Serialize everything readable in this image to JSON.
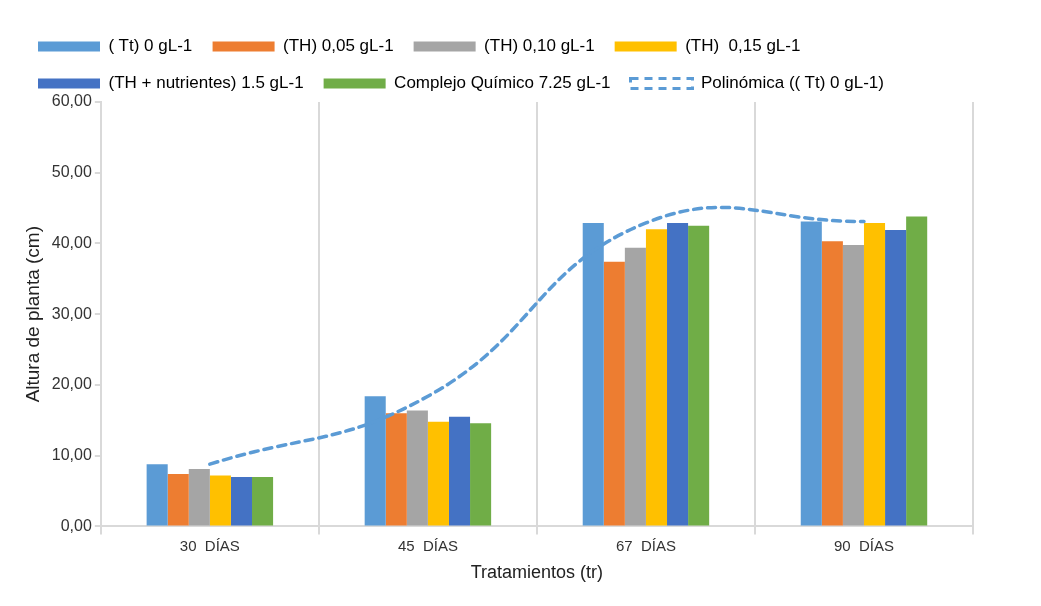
{
  "chart_data": {
    "type": "bar",
    "xlabel": "Tratamientos (tr)",
    "ylabel": "Altura de planta (cm)",
    "categories": [
      "30  DÍAS",
      "45  DÍAS",
      "67  DÍAS",
      "90  DÍAS"
    ],
    "series": [
      {
        "name": "( Tt) 0 gL-1",
        "color": "#5b9bd5",
        "values": [
          8.8,
          18.4,
          42.9,
          43.1
        ]
      },
      {
        "name": "(TH) 0,05 gL-1",
        "color": "#ed7d31",
        "values": [
          7.4,
          16.0,
          37.4,
          40.3
        ]
      },
      {
        "name": "(TH) 0,10 gL-1",
        "color": "#a5a5a5",
        "values": [
          8.1,
          16.4,
          39.4,
          39.8
        ]
      },
      {
        "name": "(TH)  0,15 gL-1",
        "color": "#ffc000",
        "values": [
          7.2,
          14.8,
          42.0,
          42.9
        ]
      },
      {
        "name": "(TH + nutrientes) 1.5 gL-1",
        "color": "#4472c4",
        "values": [
          7.0,
          15.5,
          42.9,
          41.9
        ]
      },
      {
        "name": "Complejo Químico 7.25 gL-1",
        "color": "#70ad47",
        "values": [
          7.0,
          14.6,
          42.5,
          43.8
        ]
      },
      {
        "name": "Polinómica (( Tt) 0 gL-1)",
        "type": "line",
        "line_style": "dashed",
        "marker": "none",
        "color": "#5b9bd5",
        "x": [
          "30  DÍAS",
          "45  DÍAS",
          "67  DÍAS",
          "90  DÍAS"
        ],
        "values": [
          8.8,
          18.4,
          42.9,
          43.1
        ]
      }
    ],
    "ylim": [
      0,
      60
    ],
    "yticks": [
      {
        "value": 0,
        "label": "0,00"
      },
      {
        "value": 10,
        "label": "10,00"
      },
      {
        "value": 20,
        "label": "20,00"
      },
      {
        "value": 30,
        "label": "30,00"
      },
      {
        "value": 40,
        "label": "40,00"
      },
      {
        "value": 50,
        "label": "50,00"
      },
      {
        "value": 60,
        "label": "60,00"
      }
    ],
    "grid": "x",
    "legend": "top"
  }
}
